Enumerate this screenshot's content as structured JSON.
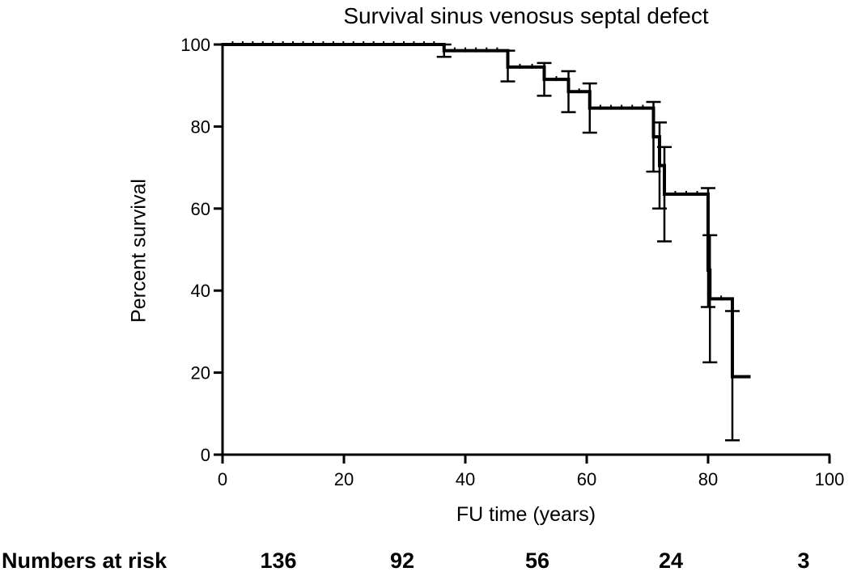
{
  "chart_data": {
    "type": "line",
    "subtype": "kaplan-meier",
    "title": "Survival sinus venosus septal defect",
    "xlabel": "FU time (years)",
    "ylabel": "Percent survival",
    "xlim": [
      0,
      100
    ],
    "ylim": [
      0,
      100
    ],
    "xticks": [
      0,
      20,
      40,
      60,
      80,
      100
    ],
    "yticks": [
      0,
      20,
      40,
      60,
      80,
      100
    ],
    "grid": false,
    "series": [
      {
        "name": "Survival",
        "steps": [
          {
            "x": 0,
            "y": 100
          },
          {
            "x": 36.5,
            "y": 98.5
          },
          {
            "x": 47,
            "y": 94.5
          },
          {
            "x": 53,
            "y": 91.5
          },
          {
            "x": 57,
            "y": 88.5
          },
          {
            "x": 60.5,
            "y": 84.5
          },
          {
            "x": 71,
            "y": 77.5
          },
          {
            "x": 72,
            "y": 70.5
          },
          {
            "x": 72.8,
            "y": 63.5
          },
          {
            "x": 80,
            "y": 45
          },
          {
            "x": 80.3,
            "y": 38
          },
          {
            "x": 84,
            "y": 19
          },
          {
            "x": 87,
            "y": 19
          }
        ],
        "error_bars": [
          {
            "x": 36.5,
            "low": 97,
            "high": 100
          },
          {
            "x": 47,
            "low": 91,
            "high": 98.5
          },
          {
            "x": 53,
            "low": 87.5,
            "high": 95.5
          },
          {
            "x": 57,
            "low": 83.5,
            "high": 93.5
          },
          {
            "x": 60.5,
            "low": 78.5,
            "high": 90.5
          },
          {
            "x": 71,
            "low": 69,
            "high": 86
          },
          {
            "x": 72,
            "low": 60,
            "high": 81
          },
          {
            "x": 72.8,
            "low": 52,
            "high": 75
          },
          {
            "x": 80,
            "low": 36,
            "high": 65
          },
          {
            "x": 80.3,
            "low": 22.5,
            "high": 53.5
          },
          {
            "x": 84,
            "low": 3.5,
            "high": 35
          }
        ]
      }
    ],
    "numbers_at_risk": {
      "label": "Numbers at risk",
      "values": [
        "136",
        "92",
        "56",
        "24",
        "3"
      ]
    }
  }
}
